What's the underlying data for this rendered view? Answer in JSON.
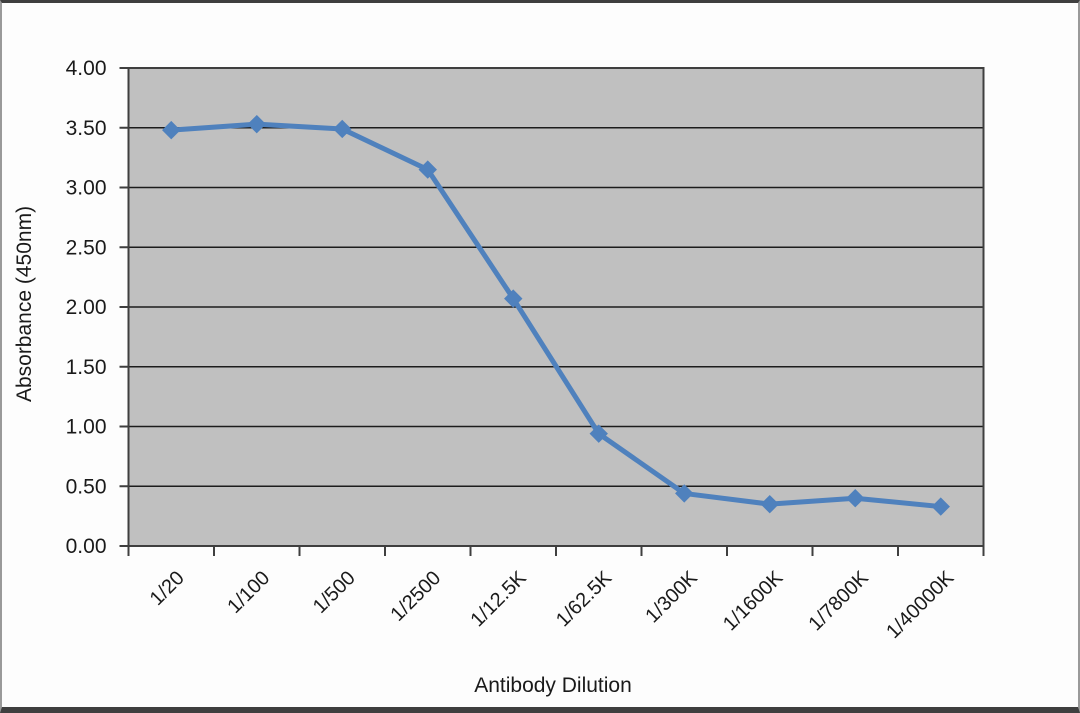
{
  "chart_data": {
    "type": "line",
    "title": "",
    "xlabel": "Antibody Dilution",
    "ylabel": "Absorbance (450nm)",
    "categories": [
      "1/20",
      "1/100",
      "1/500",
      "1/2500",
      "1/12.5K",
      "1/62.5K",
      "1/300K",
      "1/1600K",
      "1/7800K",
      "1/40000K"
    ],
    "series": [
      {
        "name": "Absorbance (450nm)",
        "values": [
          3.48,
          3.53,
          3.49,
          3.15,
          2.07,
          0.94,
          0.44,
          0.35,
          0.4,
          0.33
        ]
      }
    ],
    "ylim": [
      0,
      4
    ],
    "ytick_step": 0.5,
    "ytick_labels": [
      "0.00",
      "0.50",
      "1.00",
      "1.50",
      "2.00",
      "2.50",
      "3.00",
      "3.50",
      "4.00"
    ],
    "grid": "horizontal",
    "legend": "none",
    "marker": "diamond",
    "colors": {
      "series": "#4f81bd",
      "plot_bg": "#c0c0c0",
      "gridline": "#1c1c1c",
      "axis": "#3f3f3f",
      "text": "#1a1a1a",
      "canvas_bg": "#fdfdfd",
      "frame_border": "#3f3f3f"
    }
  }
}
